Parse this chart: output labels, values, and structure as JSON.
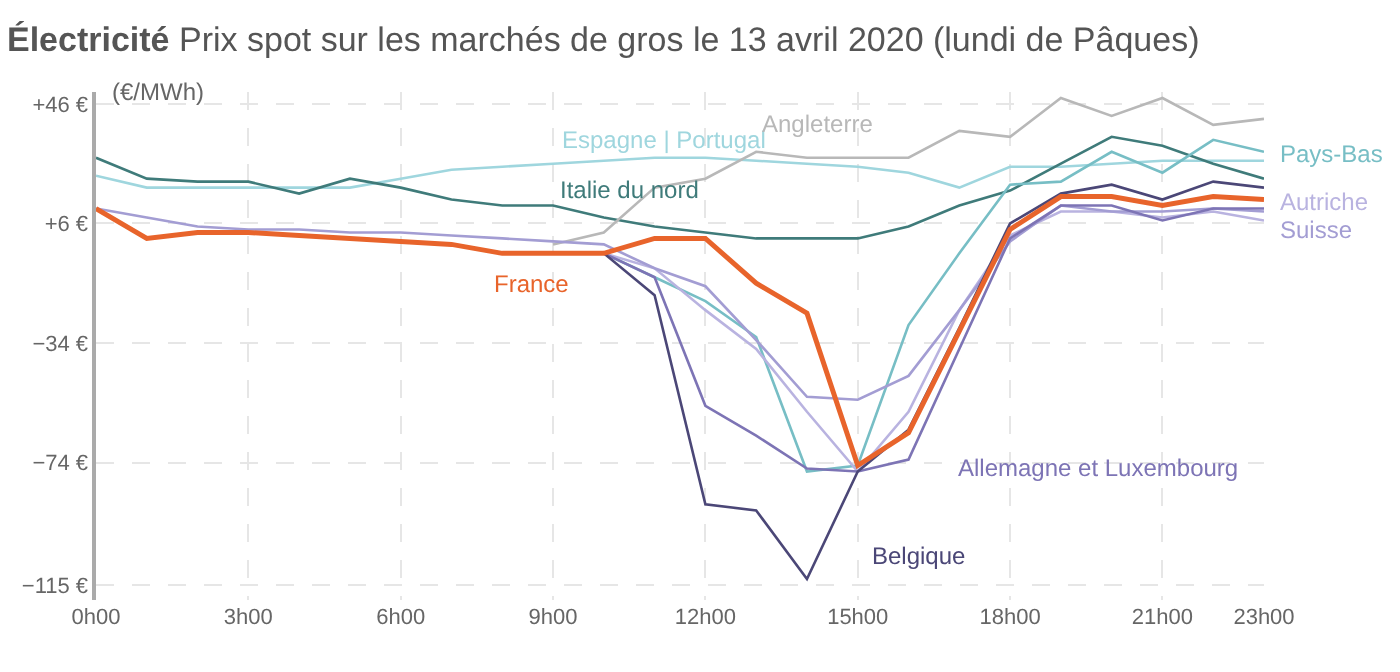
{
  "chart_data": {
    "type": "line",
    "title": "Électricité",
    "subtitle": "Prix spot sur les marchés de gros le 13 avril 2020 (lundi de Pâques)",
    "ylabel": "(€/MWh)",
    "categories": [
      "0h00",
      null,
      null,
      "3h00",
      null,
      null,
      "6h00",
      null,
      null,
      "9h00",
      null,
      null,
      "12h00",
      null,
      null,
      "15h00",
      null,
      null,
      "18h00",
      null,
      null,
      "21h00",
      null,
      "23h00"
    ],
    "ylim": [
      -120,
      50
    ],
    "yticks": [
      {
        "value": 46,
        "label": "+46 €"
      },
      {
        "value": 6,
        "label": "+6 €"
      },
      {
        "value": -34,
        "label": "−34 €"
      },
      {
        "value": -74,
        "label": "−74 €"
      },
      {
        "value": -115,
        "label": "−115 €"
      }
    ],
    "grid": true,
    "legend": false,
    "marker": "none",
    "line_style": "solid",
    "series": [
      {
        "name": "Espagne | Portugal",
        "color": "#9fd6de",
        "values": [
          22,
          18,
          18,
          18,
          18,
          18,
          21,
          24,
          25,
          26,
          27,
          28,
          28,
          27,
          26,
          25,
          23,
          18,
          25,
          25,
          26,
          27,
          27,
          27
        ]
      },
      {
        "name": "Italie du nord",
        "color": "#3f7b7a",
        "values": [
          28,
          21,
          20,
          20,
          16,
          21,
          18,
          14,
          12,
          12,
          8,
          5,
          3,
          1,
          1,
          1,
          5,
          12,
          17,
          26,
          35,
          32,
          26,
          21
        ]
      },
      {
        "name": "Angleterre",
        "color": "#b8b8b8",
        "values": [
          null,
          null,
          null,
          null,
          null,
          null,
          null,
          null,
          null,
          -1,
          3,
          18,
          21,
          30,
          28,
          28,
          28,
          37,
          35,
          48,
          42,
          48,
          39,
          41
        ]
      },
      {
        "name": "Pays-Bas",
        "color": "#77bec5",
        "values": [
          null,
          null,
          null,
          null,
          null,
          null,
          null,
          null,
          null,
          null,
          -4,
          -12,
          -20,
          -32,
          -77,
          -75,
          -28,
          -4,
          19,
          20,
          30,
          23,
          34,
          30
        ]
      },
      {
        "name": "Autriche",
        "color": "#b9b3e0",
        "values": [
          null,
          null,
          null,
          null,
          null,
          null,
          null,
          null,
          null,
          null,
          -4,
          -9,
          -23,
          -36,
          -57,
          -77,
          -57,
          -23,
          2,
          10,
          10,
          8,
          10,
          7
        ]
      },
      {
        "name": "Suisse",
        "color": "#a39dd3",
        "values": [
          11,
          8,
          5,
          4,
          4,
          3,
          3,
          2,
          1,
          0,
          -1,
          -9,
          -15,
          -33,
          -52,
          -53,
          -45,
          -23,
          0,
          12,
          10,
          10,
          11,
          10
        ]
      },
      {
        "name": "Allemagne et Luxembourg",
        "color": "#7d74b5",
        "values": [
          null,
          null,
          null,
          null,
          null,
          null,
          null,
          null,
          null,
          null,
          -4,
          -12,
          -55,
          -65,
          -76,
          -77,
          -73,
          -36,
          1,
          12,
          12,
          7,
          11,
          11
        ]
      },
      {
        "name": "Belgique",
        "color": "#4b4777",
        "values": [
          null,
          null,
          null,
          null,
          null,
          null,
          null,
          null,
          null,
          null,
          -4,
          -18,
          -88,
          -90,
          -113,
          -77,
          -63,
          -29,
          6,
          16,
          19,
          14,
          20,
          18
        ]
      },
      {
        "name": "France",
        "color": "#e8642b",
        "values": [
          11,
          1,
          3,
          3,
          2,
          1,
          0,
          -1,
          -4,
          -4,
          -4,
          1,
          1,
          -14,
          -24,
          -75,
          -64,
          -30,
          4,
          15,
          15,
          12,
          15,
          14
        ]
      }
    ]
  }
}
